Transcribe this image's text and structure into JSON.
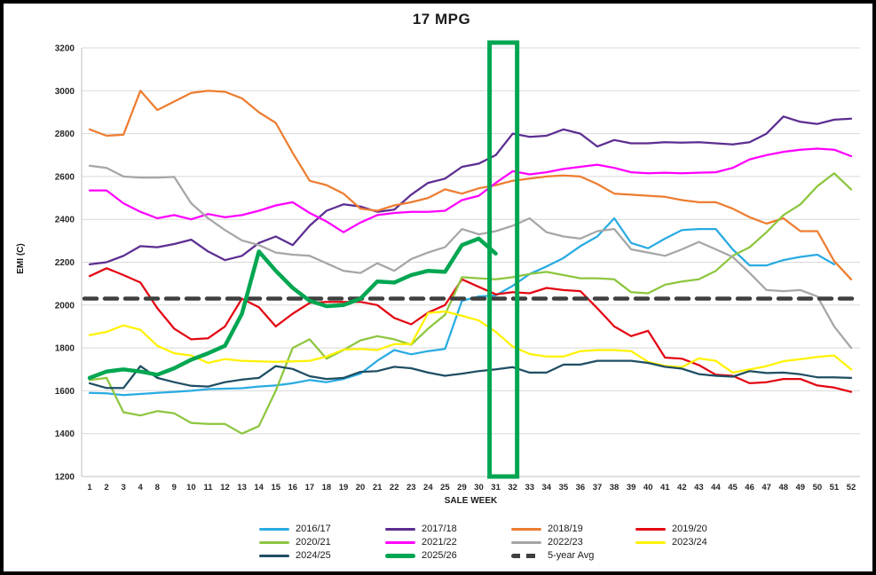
{
  "title": "17 MPG",
  "highlight_box": {
    "weeks": [
      31,
      32
    ],
    "color": "#00A651"
  },
  "chart_data": {
    "type": "line",
    "title": "17 MPG",
    "xlabel": "SALE WEEK",
    "ylabel": "EMI (C)",
    "ylim": [
      1200,
      3200
    ],
    "y_tick_step": 200,
    "grid": "horizontal",
    "legend_position": "bottom",
    "categories": [
      1,
      2,
      3,
      4,
      8,
      9,
      10,
      11,
      12,
      13,
      14,
      15,
      16,
      17,
      18,
      19,
      20,
      21,
      22,
      23,
      24,
      25,
      29,
      30,
      31,
      32,
      33,
      34,
      35,
      36,
      37,
      38,
      39,
      40,
      41,
      42,
      43,
      44,
      45,
      46,
      47,
      48,
      49,
      50,
      51,
      52
    ],
    "series": [
      {
        "name": "2016/17",
        "color": "#29ABE2",
        "width": 2.25,
        "values": [
          1590,
          1588,
          1580,
          1585,
          1590,
          1595,
          1600,
          1608,
          1610,
          1612,
          1620,
          1625,
          1635,
          1650,
          1640,
          1655,
          1680,
          1740,
          1790,
          1770,
          1785,
          1795,
          2020,
          2040,
          2045,
          2090,
          2145,
          2180,
          2220,
          2275,
          2320,
          2405,
          2290,
          2265,
          2310,
          2350,
          2355,
          2355,
          2260,
          2185,
          2185,
          2210,
          2225,
          2235,
          2190,
          null
        ]
      },
      {
        "name": "2017/18",
        "color": "#5C2D91",
        "width": 2.25,
        "values": [
          2190,
          2200,
          2230,
          2275,
          2270,
          2285,
          2305,
          2250,
          2210,
          2230,
          2290,
          2320,
          2280,
          2370,
          2440,
          2470,
          2460,
          2435,
          2445,
          2515,
          2570,
          2590,
          2645,
          2660,
          2700,
          2800,
          2785,
          2790,
          2820,
          2800,
          2740,
          2770,
          2755,
          2755,
          2760,
          2758,
          2760,
          2755,
          2750,
          2760,
          2800,
          2880,
          2855,
          2845,
          2865,
          2870
        ]
      },
      {
        "name": "2018/19",
        "color": "#ED7D31",
        "width": 2.25,
        "values": [
          2820,
          2790,
          2795,
          3000,
          2910,
          2950,
          2990,
          3000,
          2995,
          2965,
          2900,
          2850,
          2710,
          2580,
          2560,
          2520,
          2450,
          2440,
          2465,
          2480,
          2500,
          2540,
          2520,
          2545,
          2560,
          2580,
          2590,
          2600,
          2605,
          2600,
          2565,
          2520,
          2515,
          2510,
          2505,
          2490,
          2480,
          2480,
          2450,
          2410,
          2380,
          2405,
          2345,
          2345,
          2205,
          2120
        ]
      },
      {
        "name": "2019/20",
        "color": "#E30613",
        "width": 2.25,
        "values": [
          2135,
          2172,
          2140,
          2105,
          1985,
          1890,
          1840,
          1845,
          1900,
          2030,
          1990,
          1900,
          1960,
          2010,
          2015,
          2015,
          2015,
          2000,
          1940,
          1910,
          1965,
          2000,
          2120,
          2085,
          2050,
          2060,
          2055,
          2080,
          2070,
          2065,
          1985,
          1900,
          1855,
          1880,
          1755,
          1750,
          1720,
          1675,
          1670,
          1635,
          1640,
          1655,
          1655,
          1625,
          1615,
          1595
        ]
      },
      {
        "name": "2020/21",
        "color": "#8DC63F",
        "width": 2.25,
        "values": [
          1650,
          1660,
          1500,
          1485,
          1505,
          1495,
          1450,
          1445,
          1445,
          1400,
          1435,
          1600,
          1800,
          1840,
          1750,
          1790,
          1835,
          1855,
          1840,
          1815,
          1890,
          1955,
          2130,
          2125,
          2120,
          2130,
          2145,
          2155,
          2140,
          2125,
          2125,
          2120,
          2060,
          2055,
          2095,
          2110,
          2120,
          2160,
          2230,
          2270,
          2340,
          2420,
          2470,
          2555,
          2615,
          2540
        ]
      },
      {
        "name": "2021/22",
        "color": "#FF00FF",
        "width": 2.25,
        "values": [
          2535,
          2535,
          2475,
          2435,
          2405,
          2420,
          2400,
          2425,
          2410,
          2420,
          2440,
          2465,
          2480,
          2430,
          2390,
          2340,
          2385,
          2420,
          2430,
          2435,
          2435,
          2440,
          2490,
          2510,
          2570,
          2625,
          2610,
          2620,
          2635,
          2645,
          2655,
          2640,
          2620,
          2615,
          2618,
          2615,
          2618,
          2620,
          2640,
          2680,
          2700,
          2715,
          2725,
          2730,
          2725,
          2695
        ]
      },
      {
        "name": "2022/23",
        "color": "#A6A6A6",
        "width": 2.25,
        "values": [
          2650,
          2640,
          2600,
          2595,
          2595,
          2598,
          2475,
          2405,
          2350,
          2302,
          2280,
          2245,
          2235,
          2230,
          2195,
          2160,
          2150,
          2195,
          2160,
          2215,
          2245,
          2270,
          2355,
          2330,
          2345,
          2370,
          2405,
          2340,
          2320,
          2310,
          2345,
          2355,
          2260,
          2245,
          2230,
          2260,
          2295,
          2260,
          2225,
          2150,
          2070,
          2065,
          2070,
          2040,
          1900,
          1800
        ]
      },
      {
        "name": "2023/24",
        "color": "#FFF200",
        "width": 2.25,
        "values": [
          1860,
          1875,
          1905,
          1885,
          1810,
          1775,
          1765,
          1730,
          1748,
          1740,
          1737,
          1735,
          1737,
          1740,
          1760,
          1792,
          1795,
          1790,
          1818,
          1818,
          1963,
          1970,
          1950,
          1928,
          1875,
          1806,
          1772,
          1760,
          1760,
          1785,
          1790,
          1790,
          1785,
          1735,
          1716,
          1710,
          1751,
          1740,
          1685,
          1700,
          1715,
          1738,
          1748,
          1758,
          1765,
          1700
        ]
      },
      {
        "name": "2024/25",
        "color": "#1F4E63",
        "width": 2.25,
        "values": [
          1635,
          1613,
          1613,
          1715,
          1660,
          1640,
          1623,
          1620,
          1640,
          1652,
          1660,
          1715,
          1702,
          1668,
          1655,
          1660,
          1688,
          1692,
          1712,
          1705,
          1685,
          1670,
          1680,
          1692,
          1700,
          1710,
          1685,
          1685,
          1722,
          1722,
          1740,
          1740,
          1740,
          1730,
          1712,
          1703,
          1678,
          1670,
          1666,
          1692,
          1683,
          1685,
          1677,
          1663,
          1663,
          1660
        ]
      },
      {
        "name": "2025/26",
        "color": "#00A651",
        "width": 4.5,
        "values": [
          1660,
          1690,
          1700,
          1690,
          1675,
          1705,
          1745,
          1775,
          1810,
          1960,
          2250,
          2160,
          2080,
          2020,
          1995,
          2000,
          2030,
          2110,
          2105,
          2140,
          2160,
          2155,
          2280,
          2310,
          2240,
          null,
          null,
          null,
          null,
          null,
          null,
          null,
          null,
          null,
          null,
          null,
          null,
          null,
          null,
          null,
          null,
          null,
          null,
          null,
          null,
          null
        ]
      },
      {
        "name": "5-year Avg",
        "color": "#3F3F3F",
        "width": 4.5,
        "dashed": true,
        "constant_value": 2030
      }
    ]
  }
}
